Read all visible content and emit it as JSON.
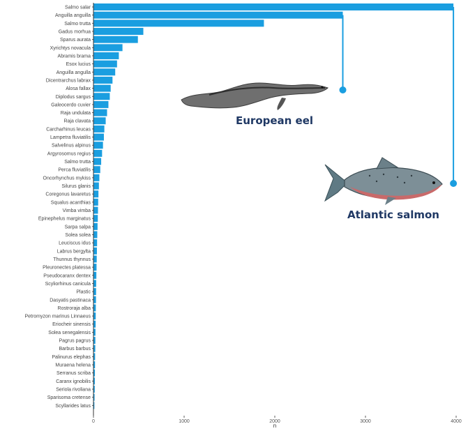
{
  "chart_data": {
    "type": "bar",
    "orientation": "horizontal",
    "xlabel": "n",
    "ylabel": "",
    "xlim": [
      0,
      4000
    ],
    "xticks": [
      "0",
      "1000",
      "2000",
      "3000",
      "4000"
    ],
    "grid": false,
    "bar_color": "#1a9ee0",
    "categories": [
      "Salmo salar",
      "Anguilla anguilla",
      "Salmo trutta",
      "Gadus morhua",
      "Sparus aurata",
      "Xyrichtys novacula",
      "Abramis brama",
      "Esox lucius",
      "Anguilla angulla",
      "Dicentrarchus labrax",
      "Alosa fallax",
      "Diplodus sargus",
      "Galeocerdo cuvier",
      "Raja undulata",
      "Raja clavata",
      "Carcharhinus leucas",
      "Lampetra fluviatilis",
      "Salvelinus alpinus",
      "Argyrosomus regius",
      "Salmo trutta",
      "Perca fluviatilis",
      "Oncorhynchus mykiss",
      "Silurus glanis",
      "Coregonus lavaretus",
      "Squalus acanthias",
      "Vimba vimba",
      "Epinephelus marginatus",
      "Sarpa salpa",
      "Solea solea",
      "Leuciscus idus",
      "Labrus bergylta",
      "Thunnus thynnus",
      "Pleuronectes platessa",
      "Pseudocaranx dentex",
      "Scyliorhinus canicula",
      "Plastic",
      "Dasyatis pastinaca",
      "Rostroraja alba",
      "Petromyzon marinus Linnaeus",
      "Eriocheir sinensis",
      "Solea senegalensis",
      "Pagrus pagrus",
      "Barbus barbus",
      "Palinurus elephas",
      "Muraena helena",
      "Serranus scriba",
      "Caranx ignobilis",
      "Seriola rivoliana",
      "Sparisoma cretense",
      "Scyllarides latus"
    ],
    "values": [
      3970,
      2750,
      1880,
      550,
      490,
      320,
      280,
      260,
      240,
      210,
      190,
      180,
      165,
      150,
      135,
      120,
      115,
      105,
      95,
      85,
      75,
      65,
      60,
      55,
      52,
      50,
      48,
      45,
      42,
      40,
      38,
      36,
      34,
      32,
      30,
      29,
      28,
      26,
      25,
      24,
      22,
      21,
      20,
      18,
      17,
      16,
      15,
      14,
      12,
      10
    ],
    "annotations": [
      {
        "text": "European eel",
        "category_index": 1,
        "value": 2750
      },
      {
        "text": "Atlantic salmon",
        "category_index": 0,
        "value": 3970
      }
    ]
  }
}
